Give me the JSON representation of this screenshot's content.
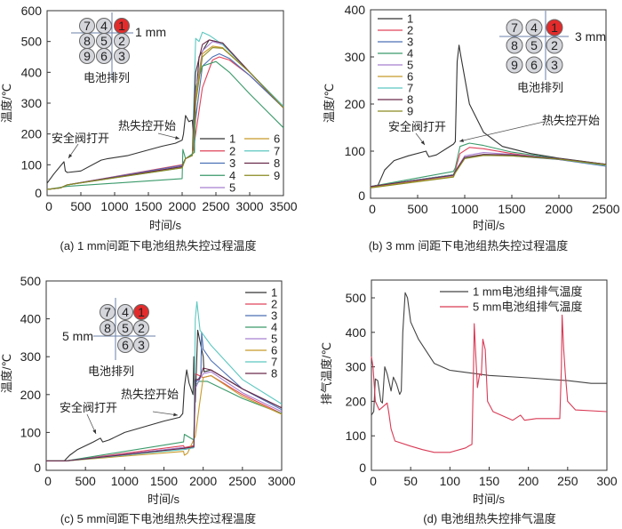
{
  "chart_data": [
    {
      "type": "line",
      "caption": "(a) 1 mm间距下电池组热失控过程温度",
      "xlabel": "时间/s",
      "ylabel": "温度/℃",
      "xlim": [
        0,
        3500
      ],
      "ylim": [
        0,
        600
      ],
      "xticks": [
        0,
        500,
        1000,
        1500,
        2000,
        2500,
        3000,
        3500
      ],
      "yticks": [
        0,
        100,
        200,
        300,
        400,
        500,
        600
      ],
      "legend_placement": "lower-right",
      "inset": {
        "cells": [
          "7",
          "4",
          "1",
          "8",
          "5",
          "2",
          "9",
          "6",
          "3"
        ],
        "spacing": "1 mm",
        "label": "电池排列",
        "highlight": "1",
        "highlight_color": "#e32b2b"
      },
      "annotations": [
        "安全阀打开",
        "热失控开始"
      ],
      "series": [
        {
          "name": "1",
          "color": "#333333",
          "x": [
            0,
            100,
            250,
            270,
            300,
            500,
            800,
            900,
            1200,
            1700,
            1900,
            2000,
            2020,
            2050,
            2100,
            2150,
            2180,
            2200,
            2250,
            2400,
            2600,
            3000,
            3500
          ],
          "y": [
            40,
            70,
            110,
            80,
            75,
            80,
            115,
            120,
            130,
            160,
            170,
            180,
            200,
            260,
            240,
            245,
            140,
            300,
            450,
            505,
            495,
            400,
            285
          ]
        },
        {
          "name": "2",
          "color": "#e0435a",
          "x": [
            0,
            200,
            300,
            2000,
            2050,
            2150,
            2200,
            2300,
            2450,
            2550,
            2700,
            3000,
            3500
          ],
          "y": [
            20,
            25,
            35,
            100,
            120,
            130,
            200,
            350,
            440,
            450,
            440,
            390,
            285
          ]
        },
        {
          "name": "3",
          "color": "#4a6fb5",
          "x": [
            0,
            200,
            300,
            2000,
            2050,
            2150,
            2200,
            2300,
            2450,
            2550,
            2700,
            3000,
            3500
          ],
          "y": [
            20,
            25,
            35,
            98,
            120,
            130,
            250,
            420,
            450,
            460,
            445,
            390,
            285
          ]
        },
        {
          "name": "4",
          "color": "#3a9a6a",
          "x": [
            0,
            300,
            2000,
            2010,
            2050,
            2180,
            2200,
            2300,
            2500,
            2700,
            3000,
            3500
          ],
          "y": [
            20,
            30,
            55,
            150,
            120,
            140,
            350,
            420,
            435,
            400,
            330,
            220
          ]
        },
        {
          "name": "5",
          "color": "#a87fd0",
          "x": [
            0,
            200,
            300,
            2000,
            2050,
            2150,
            2200,
            2300,
            2450,
            2600,
            3000,
            3500
          ],
          "y": [
            20,
            25,
            35,
            95,
            120,
            130,
            330,
            470,
            500,
            490,
            400,
            285
          ]
        },
        {
          "name": "6",
          "color": "#c89a2a",
          "x": [
            0,
            200,
            300,
            2000,
            2050,
            2150,
            2200,
            2300,
            2450,
            2600,
            3000,
            3500
          ],
          "y": [
            20,
            25,
            35,
            92,
            120,
            130,
            320,
            460,
            485,
            480,
            400,
            285
          ]
        },
        {
          "name": "7",
          "color": "#5cc7c0",
          "x": [
            0,
            200,
            300,
            2000,
            2050,
            2150,
            2200,
            2250,
            2300,
            2400,
            2600,
            3000,
            3500
          ],
          "y": [
            20,
            25,
            35,
            90,
            120,
            130,
            510,
            500,
            530,
            520,
            490,
            400,
            290
          ]
        },
        {
          "name": "8",
          "color": "#6a2a4a",
          "x": [
            0,
            200,
            300,
            2000,
            2050,
            2150,
            2200,
            2300,
            2400,
            2600,
            3000,
            3500
          ],
          "y": [
            20,
            25,
            35,
            94,
            120,
            130,
            400,
            490,
            505,
            495,
            400,
            285
          ]
        },
        {
          "name": "9",
          "color": "#8a8a20",
          "x": [
            0,
            200,
            300,
            2000,
            2050,
            2150,
            2200,
            2300,
            2450,
            2600,
            3000,
            3500
          ],
          "y": [
            20,
            25,
            35,
            90,
            120,
            130,
            300,
            450,
            480,
            478,
            400,
            285
          ]
        }
      ]
    },
    {
      "type": "line",
      "caption": "(b) 3 mm 间距下电池组热失控过程温度",
      "xlabel": "时间/s",
      "ylabel": "温度/℃",
      "xlim": [
        0,
        2500
      ],
      "ylim": [
        0,
        400
      ],
      "xticks": [
        0,
        500,
        1000,
        1500,
        2000,
        2500
      ],
      "yticks": [
        0,
        100,
        200,
        300,
        400
      ],
      "legend_placement": "upper-left",
      "inset": {
        "cells": [
          "7",
          "4",
          "1",
          "8",
          "5",
          "2",
          "9",
          "6",
          "3"
        ],
        "spacing": "3 mm",
        "label": "电池排列",
        "highlight": "1",
        "highlight_color": "#e32b2b"
      },
      "annotations": [
        "安全阀打开",
        "热失控开始"
      ],
      "series": [
        {
          "name": "1",
          "color": "#333333",
          "x": [
            0,
            80,
            150,
            250,
            400,
            590,
            600,
            620,
            700,
            880,
            900,
            920,
            940,
            960,
            1050,
            1200,
            1400,
            1700,
            2000,
            2500
          ],
          "y": [
            25,
            28,
            60,
            80,
            90,
            100,
            95,
            88,
            92,
            115,
            120,
            290,
            325,
            300,
            200,
            140,
            110,
            95,
            85,
            72
          ]
        },
        {
          "name": "2",
          "color": "#e0435a",
          "x": [
            0,
            880,
            900,
            950,
            1050,
            1200,
            1500,
            2000,
            2500
          ],
          "y": [
            25,
            50,
            60,
            95,
            108,
            105,
            95,
            82,
            70
          ]
        },
        {
          "name": "3",
          "color": "#4a6fb5",
          "x": [
            0,
            880,
            900,
            1000,
            1200,
            1500,
            2000,
            2500
          ],
          "y": [
            25,
            50,
            58,
            85,
            92,
            90,
            82,
            68
          ]
        },
        {
          "name": "4",
          "color": "#3a9a6a",
          "x": [
            0,
            880,
            900,
            950,
            1050,
            1200,
            1500,
            2000,
            2500
          ],
          "y": [
            25,
            57,
            65,
            110,
            117,
            112,
            98,
            84,
            72
          ]
        },
        {
          "name": "5",
          "color": "#a87fd0",
          "x": [
            0,
            880,
            900,
            1000,
            1200,
            1500,
            2000,
            2500
          ],
          "y": [
            25,
            48,
            58,
            90,
            97,
            93,
            84,
            70
          ]
        },
        {
          "name": "6",
          "color": "#c89a2a",
          "x": [
            0,
            880,
            900,
            1000,
            1200,
            1500,
            2000,
            2500
          ],
          "y": [
            23,
            46,
            55,
            85,
            92,
            91,
            83,
            70
          ]
        },
        {
          "name": "7",
          "color": "#5cc7c0",
          "x": [
            0,
            880,
            900,
            1000,
            1200,
            1500,
            2000,
            2500
          ],
          "y": [
            25,
            50,
            58,
            86,
            93,
            91,
            83,
            70
          ]
        },
        {
          "name": "8",
          "color": "#6a2a4a",
          "x": [
            0,
            880,
            900,
            1000,
            1200,
            1500,
            2000,
            2500
          ],
          "y": [
            25,
            49,
            57,
            87,
            93,
            92,
            84,
            72
          ]
        },
        {
          "name": "9",
          "color": "#8a8a20",
          "x": [
            0,
            880,
            900,
            1000,
            1200,
            1500,
            2000,
            2500
          ],
          "y": [
            22,
            45,
            54,
            84,
            91,
            90,
            83,
            71
          ]
        }
      ]
    },
    {
      "type": "line",
      "caption": "(c) 5 mm间距下电池组热失控过程温度",
      "xlabel": "时间/s",
      "ylabel": "温度/℃",
      "xlim": [
        0,
        3000
      ],
      "ylim": [
        0,
        500
      ],
      "xticks": [
        0,
        500,
        1000,
        1500,
        2000,
        2500,
        3000
      ],
      "yticks": [
        0,
        100,
        200,
        300,
        400,
        500
      ],
      "legend_placement": "upper-right",
      "inset": {
        "cells": [
          "7",
          "4",
          "1",
          "8",
          "5",
          "2",
          "",
          "6",
          "3"
        ],
        "spacing": "5 mm",
        "label": "电池排列",
        "highlight": "1",
        "highlight_color": "#e32b2b"
      },
      "annotations": [
        "安全阀打开",
        "热失控开始"
      ],
      "series": [
        {
          "name": "1",
          "color": "#333333",
          "x": [
            0,
            230,
            300,
            400,
            600,
            690,
            720,
            800,
            1000,
            1500,
            1700,
            1740,
            1760,
            1790,
            1820,
            1870,
            1880,
            1890,
            1900,
            1930,
            1970,
            2000,
            2010,
            2100,
            2500,
            3000
          ],
          "y": [
            25,
            25,
            40,
            55,
            75,
            85,
            75,
            80,
            100,
            130,
            140,
            150,
            220,
            265,
            230,
            200,
            300,
            200,
            180,
            370,
            330,
            300,
            260,
            265,
            215,
            165
          ]
        },
        {
          "name": "2",
          "color": "#e0435a",
          "x": [
            0,
            250,
            1750,
            1760,
            1880,
            1900,
            1950,
            2000,
            2100,
            2500,
            3000
          ],
          "y": [
            25,
            25,
            65,
            60,
            65,
            255,
            250,
            245,
            250,
            200,
            150
          ]
        },
        {
          "name": "3",
          "color": "#4a6fb5",
          "x": [
            0,
            250,
            1750,
            1760,
            1880,
            1900,
            1970,
            1980,
            2000,
            2100,
            2500,
            3000
          ],
          "y": [
            25,
            25,
            60,
            55,
            60,
            230,
            250,
            365,
            320,
            290,
            215,
            160
          ]
        },
        {
          "name": "4",
          "color": "#3a9a6a",
          "x": [
            0,
            250,
            1750,
            1760,
            1880,
            1900,
            1950,
            2050,
            2100,
            2500,
            3000
          ],
          "y": [
            25,
            25,
            75,
            95,
            80,
            225,
            235,
            235,
            230,
            190,
            150
          ]
        },
        {
          "name": "5",
          "color": "#a87fd0",
          "x": [
            0,
            250,
            1750,
            1760,
            1880,
            1900,
            1950,
            2000,
            2100,
            2500,
            3000
          ],
          "y": [
            25,
            25,
            60,
            55,
            60,
            215,
            240,
            255,
            260,
            205,
            155
          ]
        },
        {
          "name": "6",
          "color": "#c89a2a",
          "x": [
            0,
            250,
            1750,
            1760,
            1800,
            1900,
            1950,
            2000,
            2100,
            2500,
            3000
          ],
          "y": [
            25,
            25,
            50,
            40,
            45,
            90,
            170,
            245,
            250,
            195,
            148
          ]
        },
        {
          "name": "7",
          "color": "#5cc7c0",
          "x": [
            0,
            250,
            1750,
            1880,
            1900,
            1920,
            1960,
            2100,
            2500,
            3000
          ],
          "y": [
            25,
            25,
            55,
            60,
            400,
            445,
            370,
            330,
            240,
            175
          ]
        },
        {
          "name": "8",
          "color": "#6a2a4a",
          "x": [
            0,
            250,
            1750,
            1880,
            1900,
            1950,
            2000,
            2100,
            2500,
            3000
          ],
          "y": [
            25,
            25,
            58,
            62,
            240,
            240,
            270,
            265,
            215,
            165
          ]
        }
      ]
    },
    {
      "type": "line",
      "caption": "(d) 电池组热失控排气温度",
      "xlabel": "时间/s",
      "ylabel": "排气温度/℃",
      "xlim": [
        0,
        300
      ],
      "ylim": [
        0,
        550
      ],
      "xticks": [
        0,
        50,
        100,
        150,
        200,
        250,
        300
      ],
      "yticks": [
        0,
        100,
        200,
        300,
        400,
        500
      ],
      "legend_placement": "top",
      "series": [
        {
          "name": "1 mm电池组排气温度",
          "color": "#444444",
          "x": [
            0,
            3,
            5,
            8,
            12,
            14,
            17,
            20,
            25,
            28,
            32,
            36,
            38,
            40,
            43,
            46,
            50,
            60,
            80,
            100,
            150,
            200,
            250,
            280,
            300
          ],
          "y": [
            160,
            170,
            265,
            260,
            200,
            195,
            300,
            280,
            230,
            270,
            250,
            220,
            230,
            400,
            515,
            500,
            430,
            380,
            310,
            290,
            275,
            268,
            260,
            252,
            252
          ]
        },
        {
          "name": "5 mm电池组排气温度",
          "color": "#d93a55",
          "x": [
            0,
            2,
            5,
            10,
            15,
            20,
            22,
            25,
            30,
            50,
            65,
            80,
            100,
            120,
            125,
            128,
            130,
            131,
            133,
            135,
            138,
            140,
            142,
            145,
            148,
            155,
            175,
            180,
            190,
            195,
            210,
            235,
            240,
            242,
            243,
            245,
            247,
            250,
            260,
            300
          ],
          "y": [
            330,
            300,
            200,
            175,
            185,
            195,
            170,
            120,
            85,
            70,
            60,
            52,
            52,
            65,
            72,
            75,
            280,
            425,
            330,
            240,
            280,
            275,
            380,
            350,
            200,
            170,
            150,
            145,
            160,
            145,
            150,
            150,
            150,
            300,
            450,
            350,
            280,
            200,
            175,
            170
          ]
        }
      ]
    }
  ]
}
